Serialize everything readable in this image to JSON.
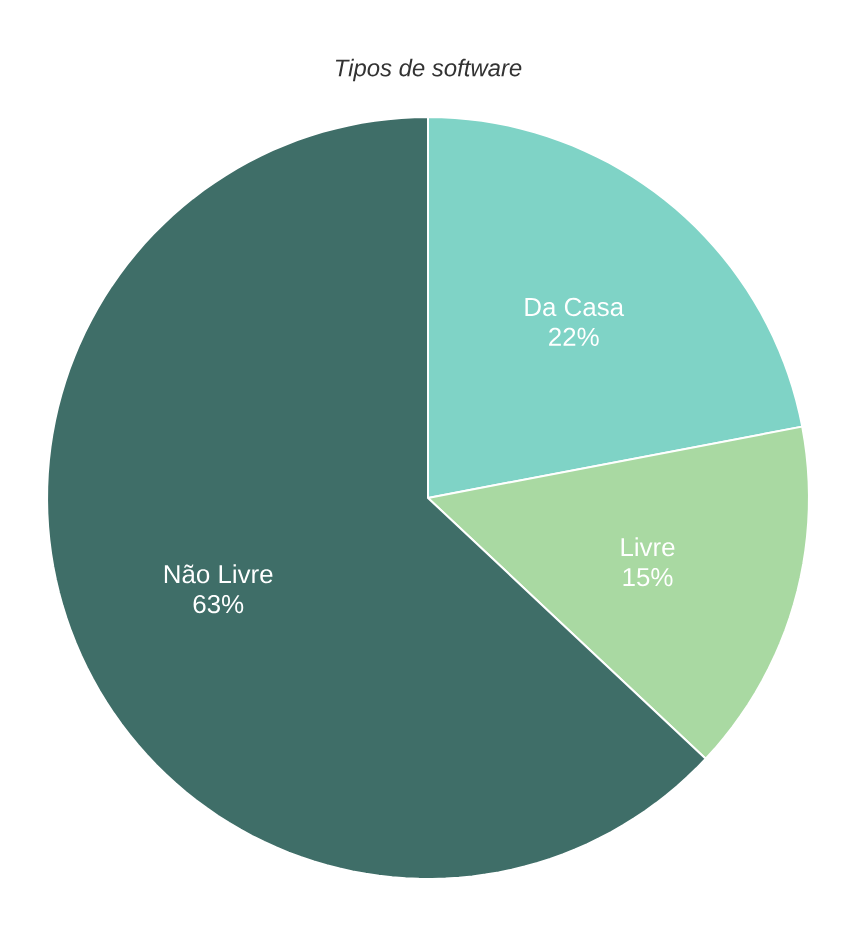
{
  "chart_data": {
    "type": "pie",
    "title": "*Tipos de software*",
    "categories": [
      "Da Casa",
      "Livre",
      "Não Livre"
    ],
    "values": [
      22,
      15,
      63
    ],
    "value_labels": [
      "22%",
      "15%",
      "63%"
    ],
    "colors": [
      "#7fd3c6",
      "#a9d9a2",
      "#3f6e68"
    ]
  }
}
